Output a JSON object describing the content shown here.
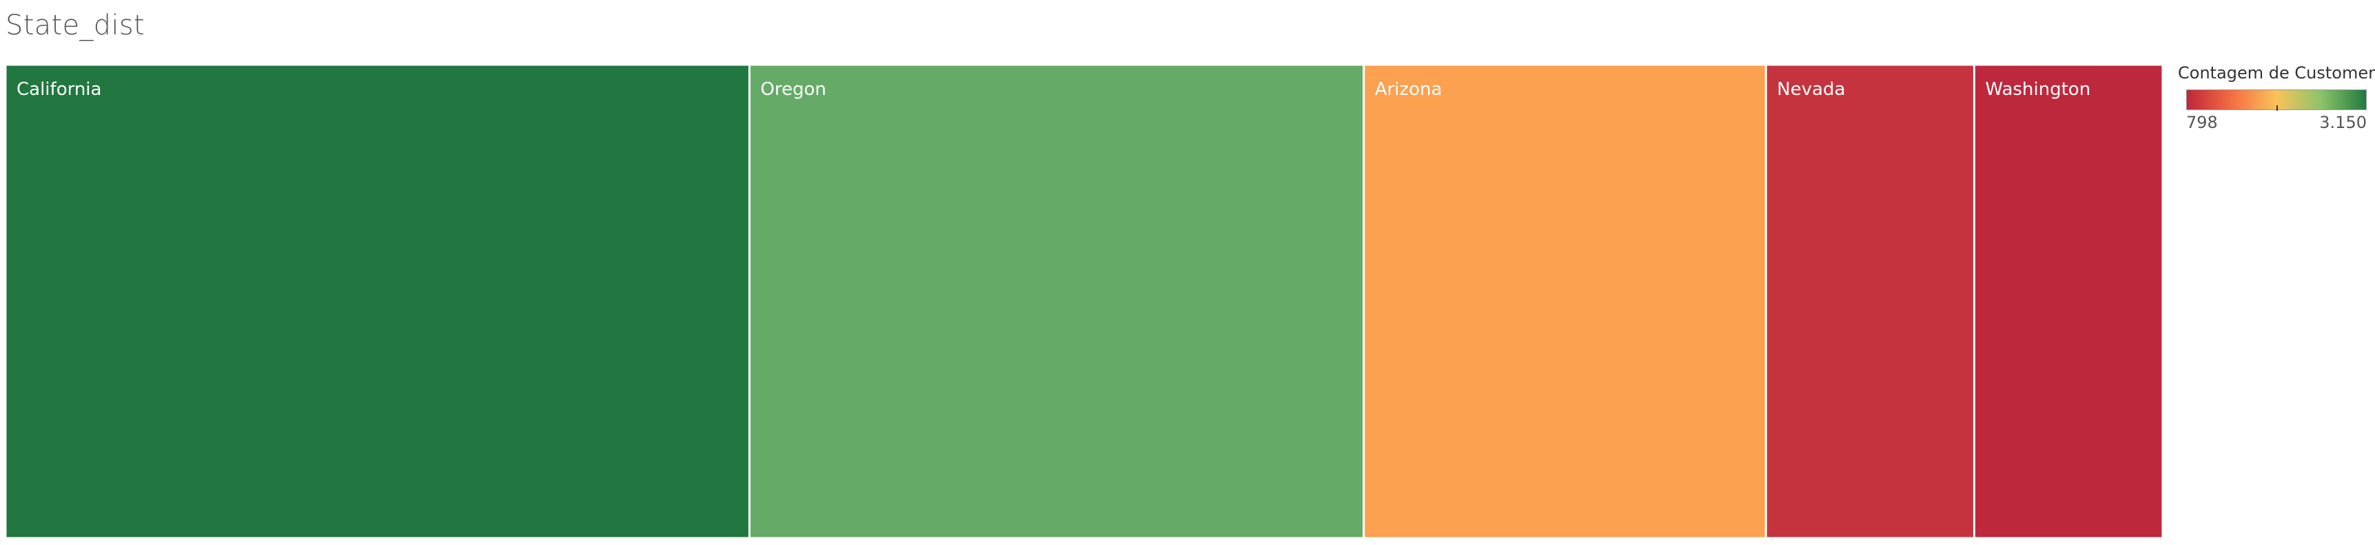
{
  "chart_data": {
    "type": "treemap",
    "title": "State_dist",
    "categories": [
      "California",
      "Oregon",
      "Arizona",
      "Nevada",
      "Washington"
    ],
    "values": [
      3150,
      2601,
      1703,
      882,
      798
    ],
    "legend": {
      "title": "Contagem de Customer",
      "min_label": "798",
      "max_label": "3.150",
      "min": 798,
      "max": 3150,
      "placement": "top-right",
      "colors": [
        "#c0253a",
        "#f46d43",
        "#f9c35a",
        "#8cc36a",
        "#1f7a3f"
      ]
    },
    "cell_colors": [
      "#227740",
      "#65ab67",
      "#fba14f",
      "#c5343e",
      "#be283d"
    ],
    "border_color": "#ffffff"
  }
}
